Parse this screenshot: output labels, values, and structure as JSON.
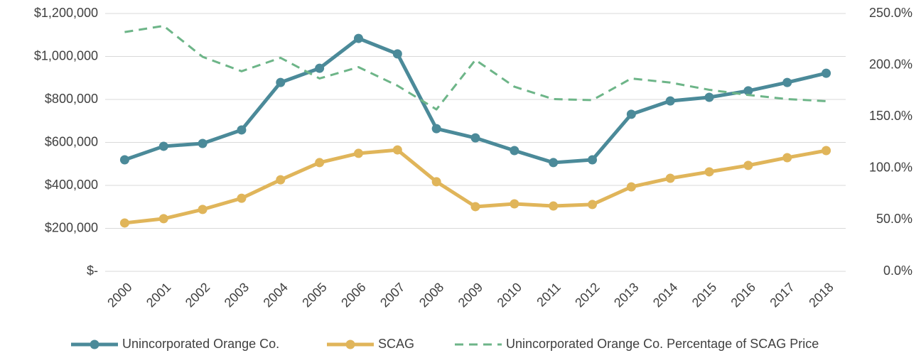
{
  "chart_data": {
    "type": "line",
    "categories": [
      "2000",
      "2001",
      "2002",
      "2003",
      "2004",
      "2005",
      "2006",
      "2007",
      "2008",
      "2009",
      "2010",
      "2011",
      "2012",
      "2013",
      "2014",
      "2015",
      "2016",
      "2017",
      "2018"
    ],
    "series": [
      {
        "name": "Unincorporated Orange Co.",
        "color": "#4b8a99",
        "style": "solid",
        "marker": true,
        "values": [
          519000,
          582000,
          595000,
          658000,
          879000,
          945000,
          1084000,
          1012000,
          664000,
          621000,
          562000,
          506000,
          519000,
          731000,
          793000,
          810000,
          840000,
          879000,
          922000
        ]
      },
      {
        "name": "SCAG",
        "color": "#e0b55a",
        "style": "solid",
        "marker": true,
        "values": [
          225000,
          245000,
          288000,
          340000,
          426000,
          506000,
          549000,
          565000,
          417000,
          301000,
          314000,
          304000,
          311000,
          393000,
          433000,
          463000,
          493000,
          529000,
          562000
        ]
      },
      {
        "name": "Unincorporated Orange Co. Percentage of SCAG Price",
        "color": "#6db588",
        "style": "dashed",
        "marker": false,
        "axis": "y2",
        "values": [
          232,
          238,
          208,
          194,
          207,
          187,
          198,
          180,
          157,
          205,
          179,
          167,
          166,
          187,
          183,
          176,
          171,
          167,
          165
        ]
      }
    ],
    "ylim": [
      0,
      1200000
    ],
    "yticks": [
      {
        "value": 0,
        "label": "$-"
      },
      {
        "value": 200000,
        "label": "$200,000"
      },
      {
        "value": 400000,
        "label": "$400,000"
      },
      {
        "value": 600000,
        "label": "$600,000"
      },
      {
        "value": 800000,
        "label": "$800,000"
      },
      {
        "value": 1000000,
        "label": "$1,000,000"
      },
      {
        "value": 1200000,
        "label": "$1,200,000"
      }
    ],
    "y2lim": [
      0,
      250
    ],
    "y2ticks": [
      {
        "value": 0,
        "label": "0.0%"
      },
      {
        "value": 50,
        "label": "50.0%"
      },
      {
        "value": 100,
        "label": "100.0%"
      },
      {
        "value": 150,
        "label": "150.0%"
      },
      {
        "value": 200,
        "label": "200.0%"
      },
      {
        "value": 250,
        "label": "250.0%"
      }
    ],
    "grid": true,
    "legend": "bottom"
  }
}
